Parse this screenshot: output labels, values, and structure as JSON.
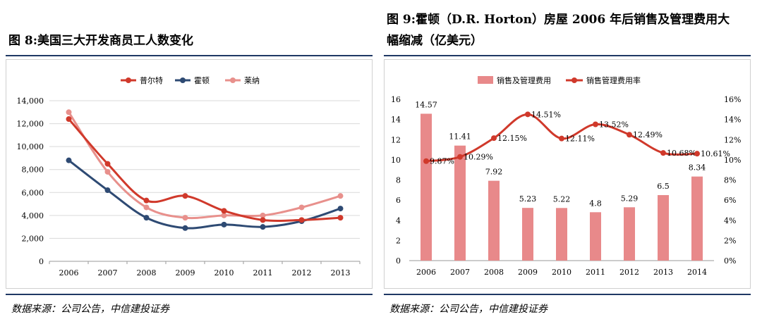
{
  "left": {
    "title": "图 8:美国三大开发商员工人数变化",
    "source": "数据来源：公司公告，中信建投证券"
  },
  "right": {
    "title_line1": "图 9:霍顿（D.R. Horton）房屋 2006 年后销售及管理费用大",
    "title_line2": "幅缩减（亿美元）",
    "source": "数据来源：公司公告，中信建投证券"
  },
  "chart_data": [
    {
      "type": "line",
      "title": "美国三大开发商员工人数变化",
      "x": [
        "2006",
        "2007",
        "2008",
        "2009",
        "2010",
        "2011",
        "2012",
        "2013"
      ],
      "ylim": [
        0,
        14000
      ],
      "yticks": [
        "0",
        "2,000",
        "4,000",
        "6,000",
        "8,000",
        "10,000",
        "12,000",
        "14,000"
      ],
      "series": [
        {
          "name": "普尔特",
          "color": "#d0392b",
          "values": [
            12400,
            8500,
            5300,
            5700,
            4400,
            3600,
            3600,
            3800
          ]
        },
        {
          "name": "霍顿",
          "color": "#2e4a73",
          "values": [
            8800,
            6200,
            3800,
            2900,
            3200,
            3000,
            3500,
            4600
          ]
        },
        {
          "name": "莱纳",
          "color": "#e8908c",
          "values": [
            13000,
            7800,
            4700,
            3800,
            4000,
            4000,
            4700,
            5700
          ]
        }
      ],
      "grid": true,
      "legend": "top-center"
    },
    {
      "type": "bar+line",
      "title": "霍顿房屋 销售及管理费用（亿美元）",
      "x": [
        "2006",
        "2007",
        "2008",
        "2009",
        "2010",
        "2011",
        "2012",
        "2013",
        "2014"
      ],
      "bar": {
        "name": "销售及管理费用",
        "color": "#e8898a",
        "values": [
          14.57,
          11.41,
          7.92,
          5.23,
          5.22,
          4.8,
          5.29,
          6.5,
          8.34
        ],
        "labels": [
          "14.57",
          "11.41",
          "7.92",
          "5.23",
          "5.22",
          "4.8",
          "5.29",
          "6.5",
          "8.34"
        ]
      },
      "line": {
        "name": "销售管理费用率",
        "color": "#d0392b",
        "values": [
          9.87,
          10.29,
          12.15,
          14.51,
          12.11,
          13.52,
          12.49,
          10.68,
          10.61
        ],
        "labels": [
          "9.87%",
          "10.29%",
          "12.15%",
          "14.51%",
          "12.11%",
          "13.52%",
          "12.49%",
          "10.68%",
          "10.61%"
        ]
      },
      "ylim_left": [
        0,
        16
      ],
      "yticks_left": [
        "0",
        "2",
        "4",
        "6",
        "8",
        "10",
        "12",
        "14",
        "16"
      ],
      "ylim_right": [
        0,
        16
      ],
      "yticks_right": [
        "0%",
        "2%",
        "4%",
        "6%",
        "8%",
        "10%",
        "12%",
        "14%",
        "16%"
      ],
      "grid": false,
      "legend": "top-center"
    }
  ]
}
